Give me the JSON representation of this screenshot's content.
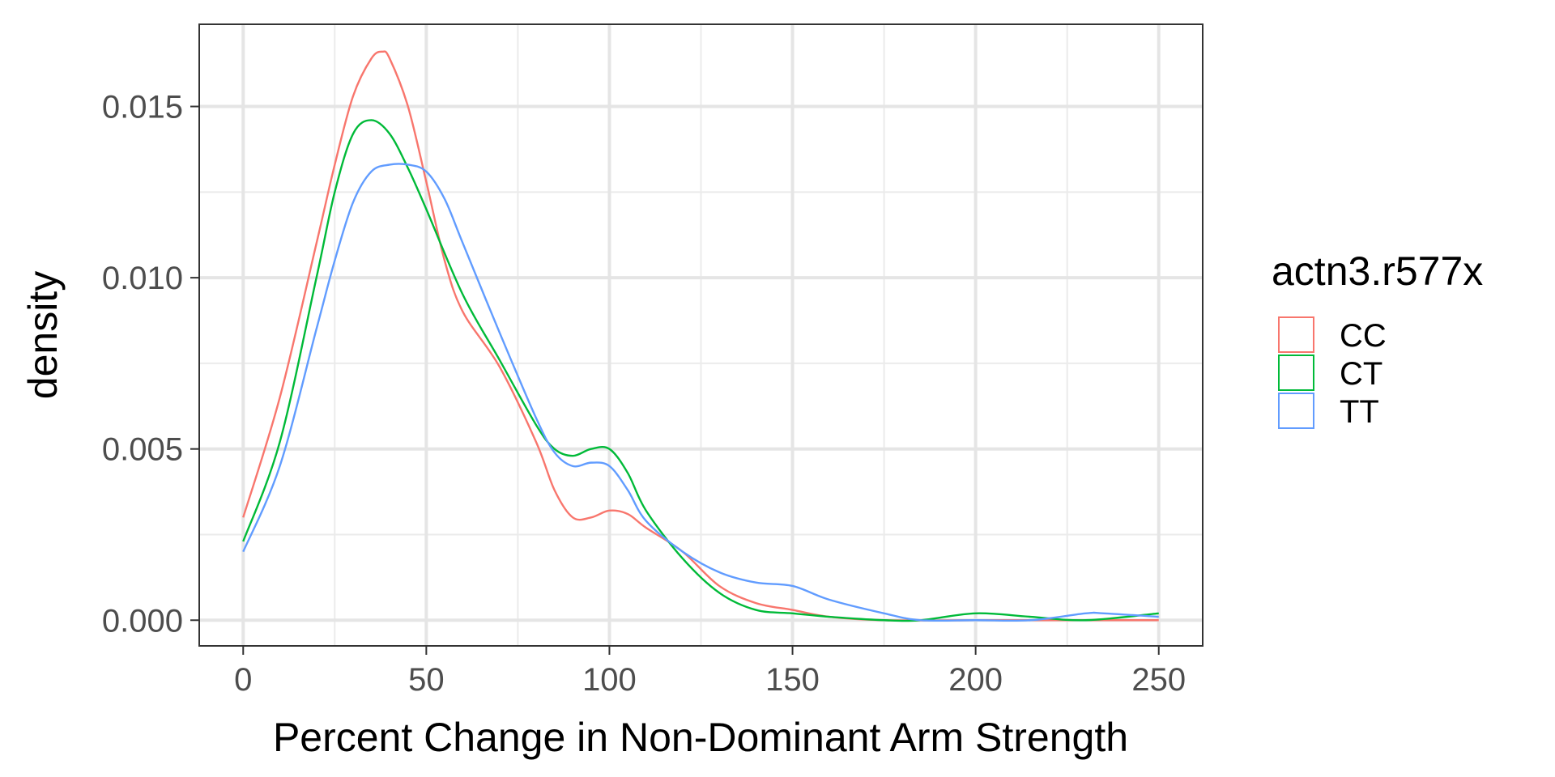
{
  "chart_data": {
    "type": "line",
    "title": "",
    "xlabel": "Percent Change in Non-Dominant Arm Strength",
    "ylabel": "density",
    "xlim": [
      -12,
      262
    ],
    "ylim": [
      -0.00075,
      0.0174
    ],
    "x_ticks": [
      0,
      50,
      100,
      150,
      200,
      250
    ],
    "x_tick_labels": [
      "0",
      "50",
      "100",
      "150",
      "200",
      "250"
    ],
    "y_ticks": [
      0.0,
      0.005,
      0.01,
      0.015
    ],
    "y_tick_labels": [
      "0.000",
      "0.005",
      "0.010",
      "0.015"
    ],
    "grid": true,
    "legend": {
      "title": "actn3.r577x",
      "position": "right"
    },
    "series": [
      {
        "name": "CC",
        "color": "#F8766D",
        "x": [
          0,
          10,
          20,
          25,
          30,
          35,
          38,
          40,
          45,
          50,
          55,
          60,
          70,
          80,
          85,
          90,
          95,
          100,
          105,
          110,
          120,
          130,
          140,
          150,
          160,
          175,
          200,
          230,
          250
        ],
        "y": [
          0.003,
          0.0065,
          0.011,
          0.0133,
          0.0153,
          0.0164,
          0.0166,
          0.0164,
          0.015,
          0.0128,
          0.0105,
          0.009,
          0.0074,
          0.0052,
          0.0038,
          0.003,
          0.003,
          0.0032,
          0.0031,
          0.0027,
          0.002,
          0.001,
          0.0005,
          0.0003,
          0.0001,
          0.0,
          0.0,
          0.0,
          0.0
        ]
      },
      {
        "name": "CT",
        "color": "#00BA38",
        "x": [
          0,
          10,
          20,
          25,
          30,
          35,
          40,
          45,
          50,
          60,
          70,
          80,
          85,
          90,
          95,
          100,
          105,
          110,
          120,
          130,
          140,
          150,
          160,
          175,
          185,
          200,
          215,
          230,
          250
        ],
        "y": [
          0.0023,
          0.0052,
          0.01,
          0.0125,
          0.0142,
          0.0146,
          0.0142,
          0.0132,
          0.012,
          0.0095,
          0.0076,
          0.0057,
          0.005,
          0.0048,
          0.005,
          0.005,
          0.0043,
          0.0032,
          0.0018,
          0.0008,
          0.0003,
          0.0002,
          0.0001,
          0.0,
          0.0,
          0.0002,
          0.0001,
          0.0,
          0.0002
        ]
      },
      {
        "name": "TT",
        "color": "#619CFF",
        "x": [
          0,
          10,
          20,
          25,
          30,
          35,
          40,
          45,
          50,
          55,
          60,
          70,
          80,
          85,
          90,
          95,
          100,
          105,
          110,
          120,
          130,
          140,
          150,
          160,
          175,
          185,
          200,
          215,
          230,
          235,
          250
        ],
        "y": [
          0.002,
          0.0045,
          0.0085,
          0.0105,
          0.0122,
          0.0131,
          0.0133,
          0.0133,
          0.0131,
          0.0123,
          0.011,
          0.0084,
          0.0059,
          0.0049,
          0.0045,
          0.0046,
          0.0045,
          0.0038,
          0.0029,
          0.002,
          0.0014,
          0.0011,
          0.001,
          0.0006,
          0.0002,
          0.0,
          0.0,
          0.0,
          0.0002,
          0.0002,
          0.0001
        ]
      }
    ]
  }
}
